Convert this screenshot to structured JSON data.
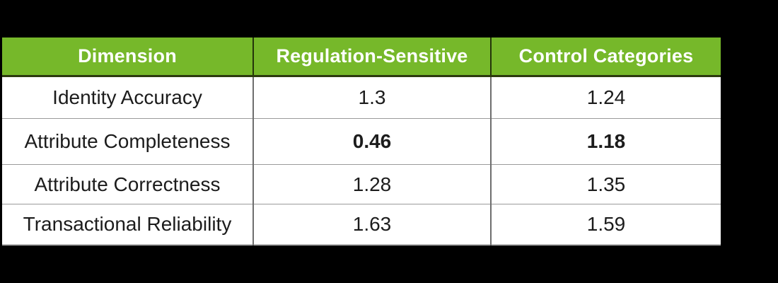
{
  "page": {
    "background_color": "#000000"
  },
  "table": {
    "header": {
      "bg_color": "#76b82a",
      "text_color": "#ffffff",
      "col_dimension": "Dimension",
      "col_regulation_sensitive": "Regulation-Sensitive",
      "col_control_categories": "Control Categories"
    },
    "rows": [
      {
        "dimension": "Identity Accuracy",
        "regulation_sensitive": "1.3",
        "control_categories": "1.24"
      },
      {
        "dimension": "Attribute Completeness",
        "regulation_sensitive": "0.46",
        "control_categories": "1.18"
      },
      {
        "dimension": "Attribute Correctness",
        "regulation_sensitive": "1.28",
        "control_categories": "1.35"
      },
      {
        "dimension": "Transactional Reliability",
        "regulation_sensitive": "1.63",
        "control_categories": "1.59"
      }
    ]
  },
  "chart_data": {
    "type": "table",
    "title": "",
    "columns": [
      "Dimension",
      "Regulation-Sensitive",
      "Control Categories"
    ],
    "categories": [
      "Identity Accuracy",
      "Attribute Completeness",
      "Attribute Correctness",
      "Transactional Reliability"
    ],
    "series": [
      {
        "name": "Regulation-Sensitive",
        "values": [
          1.3,
          0.46,
          1.28,
          1.63
        ]
      },
      {
        "name": "Control Categories",
        "values": [
          1.24,
          1.18,
          1.35,
          1.59
        ]
      }
    ],
    "emphasized_cells": [
      {
        "row": "Attribute Completeness",
        "column": "Regulation-Sensitive",
        "value": 0.46,
        "style": "bold"
      },
      {
        "row": "Attribute Completeness",
        "column": "Control Categories",
        "value": 1.18,
        "style": "bold"
      }
    ],
    "layout_hints": {
      "header_bg": "#76b82a",
      "header_text": "#ffffff",
      "page_bg": "#000000",
      "cell_alignment": "center"
    }
  }
}
